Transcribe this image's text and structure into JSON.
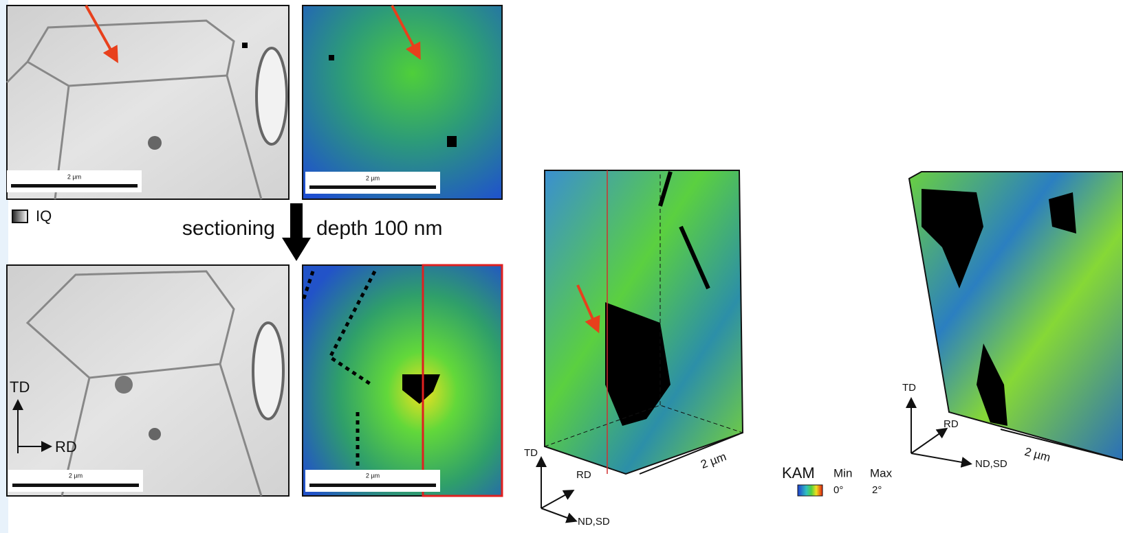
{
  "scale_bars": [
    "2 µm",
    "2 µm",
    "2 µm",
    "2 µm"
  ],
  "iq_legend": "IQ",
  "sectioning": {
    "left": "sectioning",
    "right": "depth 100 nm"
  },
  "axes_2d": {
    "vertical": "TD",
    "horizontal": "RD"
  },
  "box_3d_left": {
    "axes": [
      "TD",
      "RD",
      "ND,SD"
    ],
    "scale": "2 µm"
  },
  "kam_legend": {
    "title": "KAM",
    "min_label": "Min",
    "max_label": "Max",
    "min_value": "0°",
    "max_value": "2°"
  },
  "box_3d_right": {
    "axes": [
      "TD",
      "RD",
      "ND,SD"
    ],
    "scale": "2 µm"
  }
}
